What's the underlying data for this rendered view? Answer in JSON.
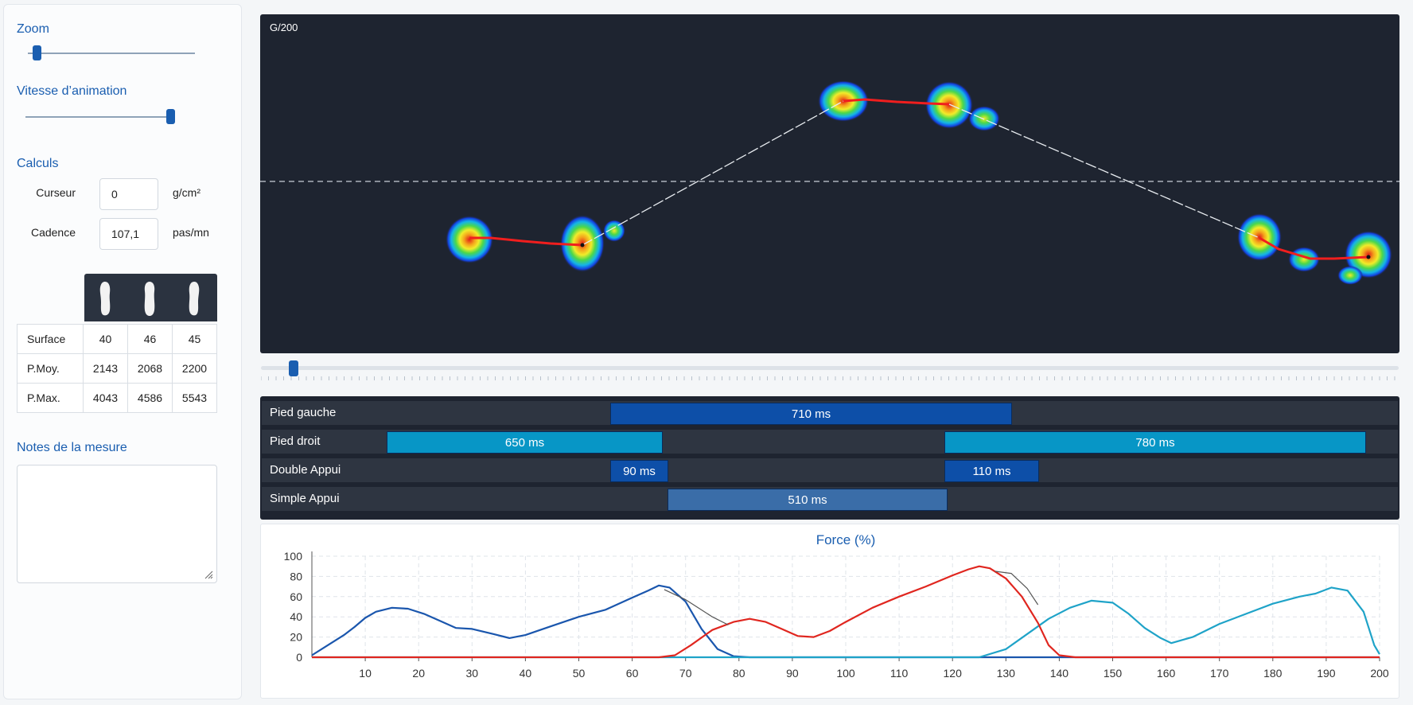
{
  "controls": {
    "zoom_title": "Zoom",
    "zoom_level": 0.05,
    "speed_title": "Vitesse d’animation",
    "speed_level": 0.97
  },
  "calculs": {
    "title": "Calculs",
    "cursor_label": "Curseur",
    "cursor_value": "0",
    "cursor_unit": "g/cm²",
    "cadence_label": "Cadence",
    "cadence_value": "107,1",
    "cadence_unit": "pas/mn"
  },
  "feet_icons": [
    "left-foot-icon",
    "both-feet-icon",
    "right-foot-icon"
  ],
  "stats": {
    "rows": [
      {
        "label": "Surface",
        "values": [
          "40",
          "46",
          "45"
        ]
      },
      {
        "label": "P.Moy.",
        "values": [
          "2143",
          "2068",
          "2200"
        ]
      },
      {
        "label": "P.Max.",
        "values": [
          "4043",
          "4586",
          "5543"
        ]
      }
    ]
  },
  "notes": {
    "title": "Notes de la mesure",
    "value": ""
  },
  "pressure_map": {
    "label": "G/200"
  },
  "timeline": {
    "position": 0.02
  },
  "phases": {
    "rows": [
      {
        "label": "Pied gauche",
        "bars": [
          {
            "text": "710 ms",
            "color": "#0d4fa8"
          }
        ]
      },
      {
        "label": "Pied droit",
        "bars": [
          {
            "text": "650 ms",
            "color": "#0796c6"
          },
          {
            "text": "780 ms",
            "color": "#0796c6"
          }
        ]
      },
      {
        "label": "Double Appui",
        "bars": [
          {
            "text": "90 ms",
            "color": "#0d4fa8"
          },
          {
            "text": "110 ms",
            "color": "#0d4fa8"
          }
        ]
      },
      {
        "label": "Simple Appui",
        "bars": [
          {
            "text": "510 ms",
            "color": "#3a6da8"
          }
        ]
      }
    ]
  },
  "chart_data": {
    "type": "line",
    "title": "Force (%)",
    "xlabel": "",
    "ylabel": "",
    "xlim": [
      0,
      200
    ],
    "ylim": [
      0,
      100
    ],
    "x_ticks": [
      10,
      20,
      30,
      40,
      50,
      60,
      70,
      80,
      90,
      100,
      110,
      120,
      130,
      140,
      150,
      160,
      170,
      180,
      190,
      200
    ],
    "y_ticks": [
      0,
      20,
      40,
      60,
      80,
      100
    ],
    "grid": true,
    "series": [
      {
        "color": "#1a56ad",
        "points": [
          [
            0,
            2
          ],
          [
            3,
            12
          ],
          [
            6,
            22
          ],
          [
            8,
            30
          ],
          [
            10,
            39
          ],
          [
            12,
            45
          ],
          [
            15,
            49
          ],
          [
            18,
            48
          ],
          [
            21,
            43
          ],
          [
            24,
            36
          ],
          [
            27,
            29
          ],
          [
            30,
            28
          ],
          [
            34,
            23
          ],
          [
            37,
            19
          ],
          [
            40,
            22
          ],
          [
            45,
            31
          ],
          [
            50,
            40
          ],
          [
            55,
            47
          ],
          [
            60,
            59
          ],
          [
            63,
            66
          ],
          [
            65,
            71
          ],
          [
            67,
            69
          ],
          [
            70,
            55
          ],
          [
            73,
            28
          ],
          [
            76,
            8
          ],
          [
            79,
            1
          ],
          [
            82,
            0
          ],
          [
            200,
            0
          ]
        ]
      },
      {
        "color": "#1fa3c8",
        "points": [
          [
            0,
            0
          ],
          [
            125,
            0
          ],
          [
            130,
            8
          ],
          [
            134,
            23
          ],
          [
            138,
            38
          ],
          [
            142,
            49
          ],
          [
            146,
            56
          ],
          [
            150,
            54
          ],
          [
            153,
            43
          ],
          [
            156,
            29
          ],
          [
            159,
            19
          ],
          [
            161,
            14
          ],
          [
            165,
            20
          ],
          [
            170,
            33
          ],
          [
            175,
            43
          ],
          [
            180,
            53
          ],
          [
            185,
            60
          ],
          [
            188,
            63
          ],
          [
            191,
            69
          ],
          [
            194,
            66
          ],
          [
            197,
            45
          ],
          [
            199,
            12
          ],
          [
            200,
            3
          ]
        ]
      },
      {
        "color": "#e0261f",
        "points": [
          [
            0,
            0
          ],
          [
            65,
            0
          ],
          [
            68,
            2
          ],
          [
            71,
            12
          ],
          [
            75,
            27
          ],
          [
            79,
            35
          ],
          [
            82,
            38
          ],
          [
            85,
            35
          ],
          [
            88,
            28
          ],
          [
            91,
            21
          ],
          [
            94,
            20
          ],
          [
            97,
            26
          ],
          [
            100,
            35
          ],
          [
            105,
            49
          ],
          [
            110,
            60
          ],
          [
            115,
            70
          ],
          [
            120,
            81
          ],
          [
            123,
            87
          ],
          [
            125,
            90
          ],
          [
            127,
            88
          ],
          [
            130,
            78
          ],
          [
            133,
            60
          ],
          [
            136,
            34
          ],
          [
            138,
            12
          ],
          [
            140,
            2
          ],
          [
            143,
            0
          ],
          [
            200,
            0
          ]
        ]
      },
      {
        "color": "#555555",
        "points": [
          [
            66,
            67
          ],
          [
            70,
            57
          ],
          [
            75,
            40
          ],
          [
            78,
            32
          ]
        ]
      },
      {
        "color": "#555555",
        "points": [
          [
            128,
            85
          ],
          [
            131,
            83
          ],
          [
            134,
            68
          ],
          [
            136,
            52
          ]
        ]
      }
    ]
  }
}
